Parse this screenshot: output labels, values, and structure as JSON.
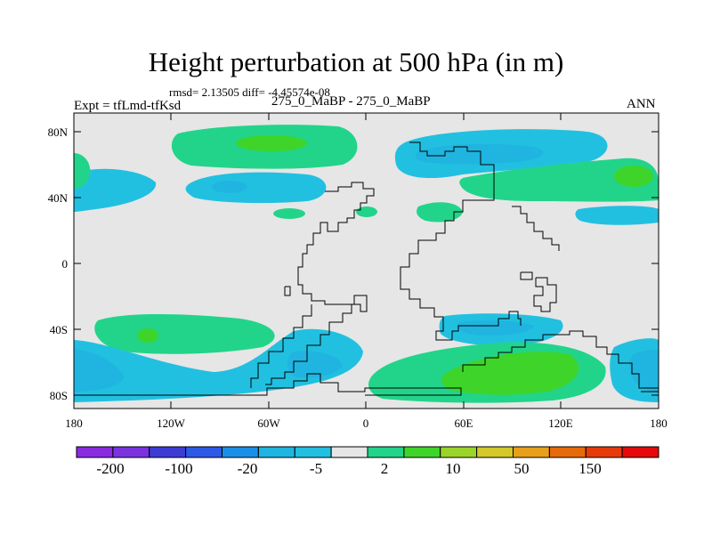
{
  "title": "Height perturbation at 500 hPa (in m)",
  "stats_line": "rmsd= 2.13505 diff= -4.45574e-08",
  "left_label": "Expt = tfLmd-tfKsd",
  "center_label": "275_0_MaBP - 275_0_MaBP",
  "right_label": "ANN",
  "map_axes": {
    "lat_ticks": [
      "80N",
      "40N",
      "0",
      "40S",
      "80S"
    ],
    "lon_ticks": [
      "180",
      "120W",
      "60W",
      "0",
      "60E",
      "120E",
      "180"
    ]
  },
  "colorbar": {
    "colors": [
      "#8a2be2",
      "#7b33e0",
      "#3d3dd6",
      "#2c59e6",
      "#1a8fe8",
      "#1fb5e0",
      "#22c0e0",
      "#e6e6e6",
      "#22d48a",
      "#3ed42a",
      "#9ad42a",
      "#d4c82a",
      "#e6a01a",
      "#e66a0a",
      "#e63a0a",
      "#e60a0a"
    ],
    "labels": [
      "-200",
      "-100",
      "-20",
      "-5",
      "2",
      "10",
      "50",
      "150"
    ]
  }
}
